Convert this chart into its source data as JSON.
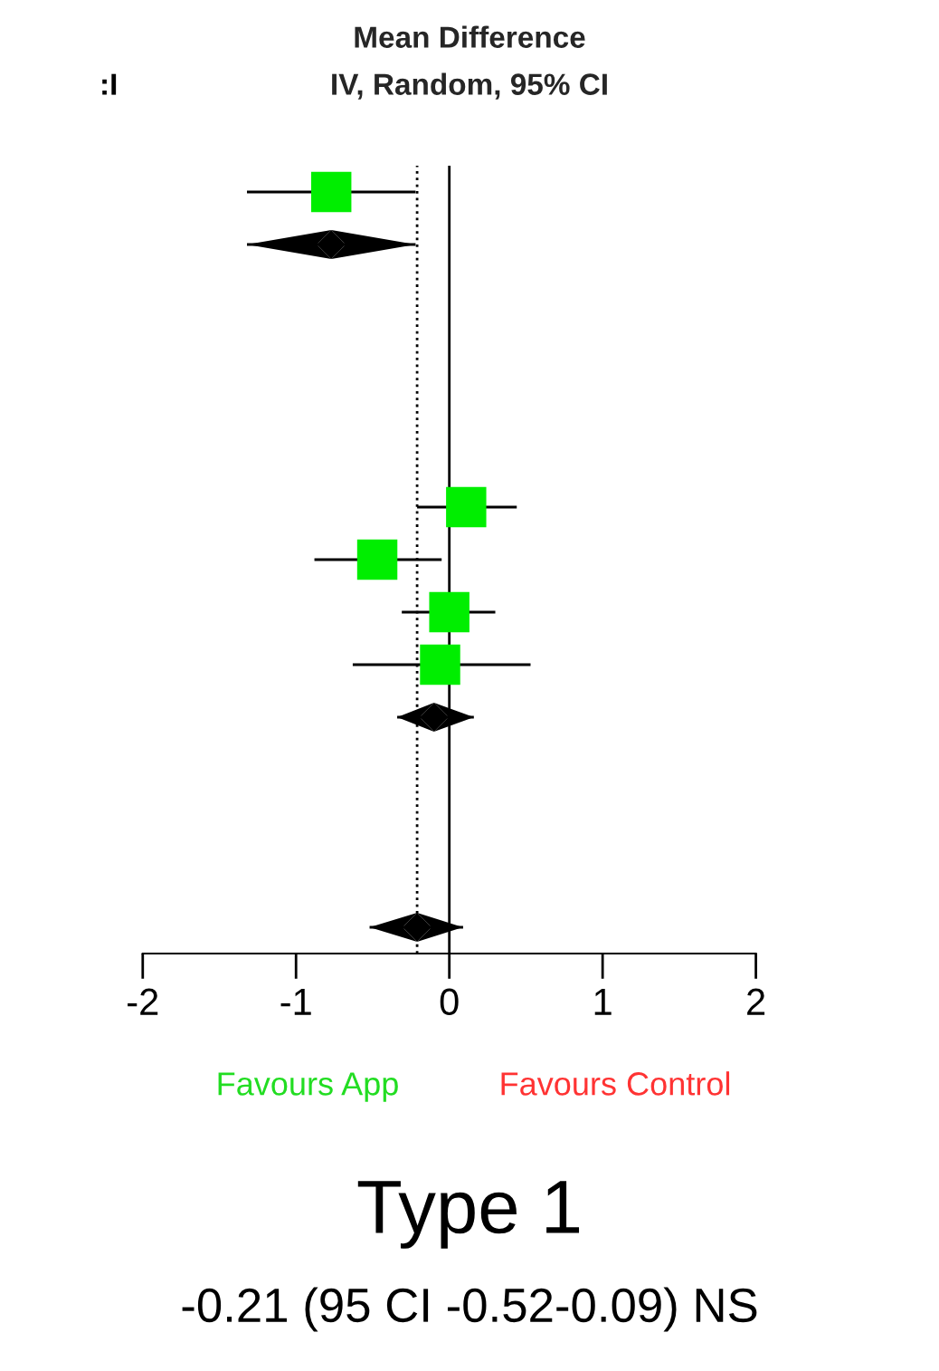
{
  "chart_data": {
    "type": "scatter",
    "title": "Mean Difference",
    "subtitle": "IV, Random, 95% CI",
    "orientation": "horizontal",
    "categories": [
      null,
      null,
      null,
      null,
      null,
      null,
      null,
      null,
      null,
      null,
      null,
      null,
      null,
      null,
      null
    ],
    "series": [
      {
        "marker": "square",
        "color": "#00ee00",
        "values": [
          -0.77,
          null,
          null,
          null,
          null,
          null,
          0.11,
          -0.47,
          0.0,
          -0.06,
          null,
          null,
          null,
          null,
          null
        ],
        "errors": [
          [
            -1.32,
            -0.22
          ],
          null,
          null,
          null,
          null,
          null,
          [
            -0.21,
            0.44
          ],
          [
            -0.88,
            -0.05
          ],
          [
            -0.31,
            0.3
          ],
          [
            -0.63,
            0.53
          ],
          null,
          null,
          null,
          null,
          null
        ]
      },
      {
        "marker": "diamond",
        "color": "#000000",
        "values": [
          null,
          -0.77,
          null,
          null,
          null,
          null,
          null,
          null,
          null,
          null,
          -0.1,
          null,
          null,
          null,
          -0.21
        ],
        "errors": [
          null,
          [
            -1.32,
            -0.22
          ],
          null,
          null,
          null,
          null,
          null,
          null,
          null,
          null,
          [
            -0.34,
            0.16
          ],
          null,
          null,
          null,
          [
            -0.52,
            0.09
          ]
        ]
      }
    ],
    "xlim": [
      -2,
      2
    ],
    "xticks": [
      -2,
      -1,
      0,
      1,
      2
    ],
    "tick_labels": "x",
    "ref_lines": [
      {
        "axis": "x",
        "value": 0,
        "color": "#000000",
        "line_style": "solid"
      },
      {
        "axis": "x",
        "value": -0.21,
        "color": "#000000",
        "line_style": "dotted"
      }
    ],
    "annotations": [
      ":I",
      "Favours App",
      "Favours Control",
      "Type 1",
      "-0.21 (95 CI -0.52-0.09) NS"
    ]
  }
}
